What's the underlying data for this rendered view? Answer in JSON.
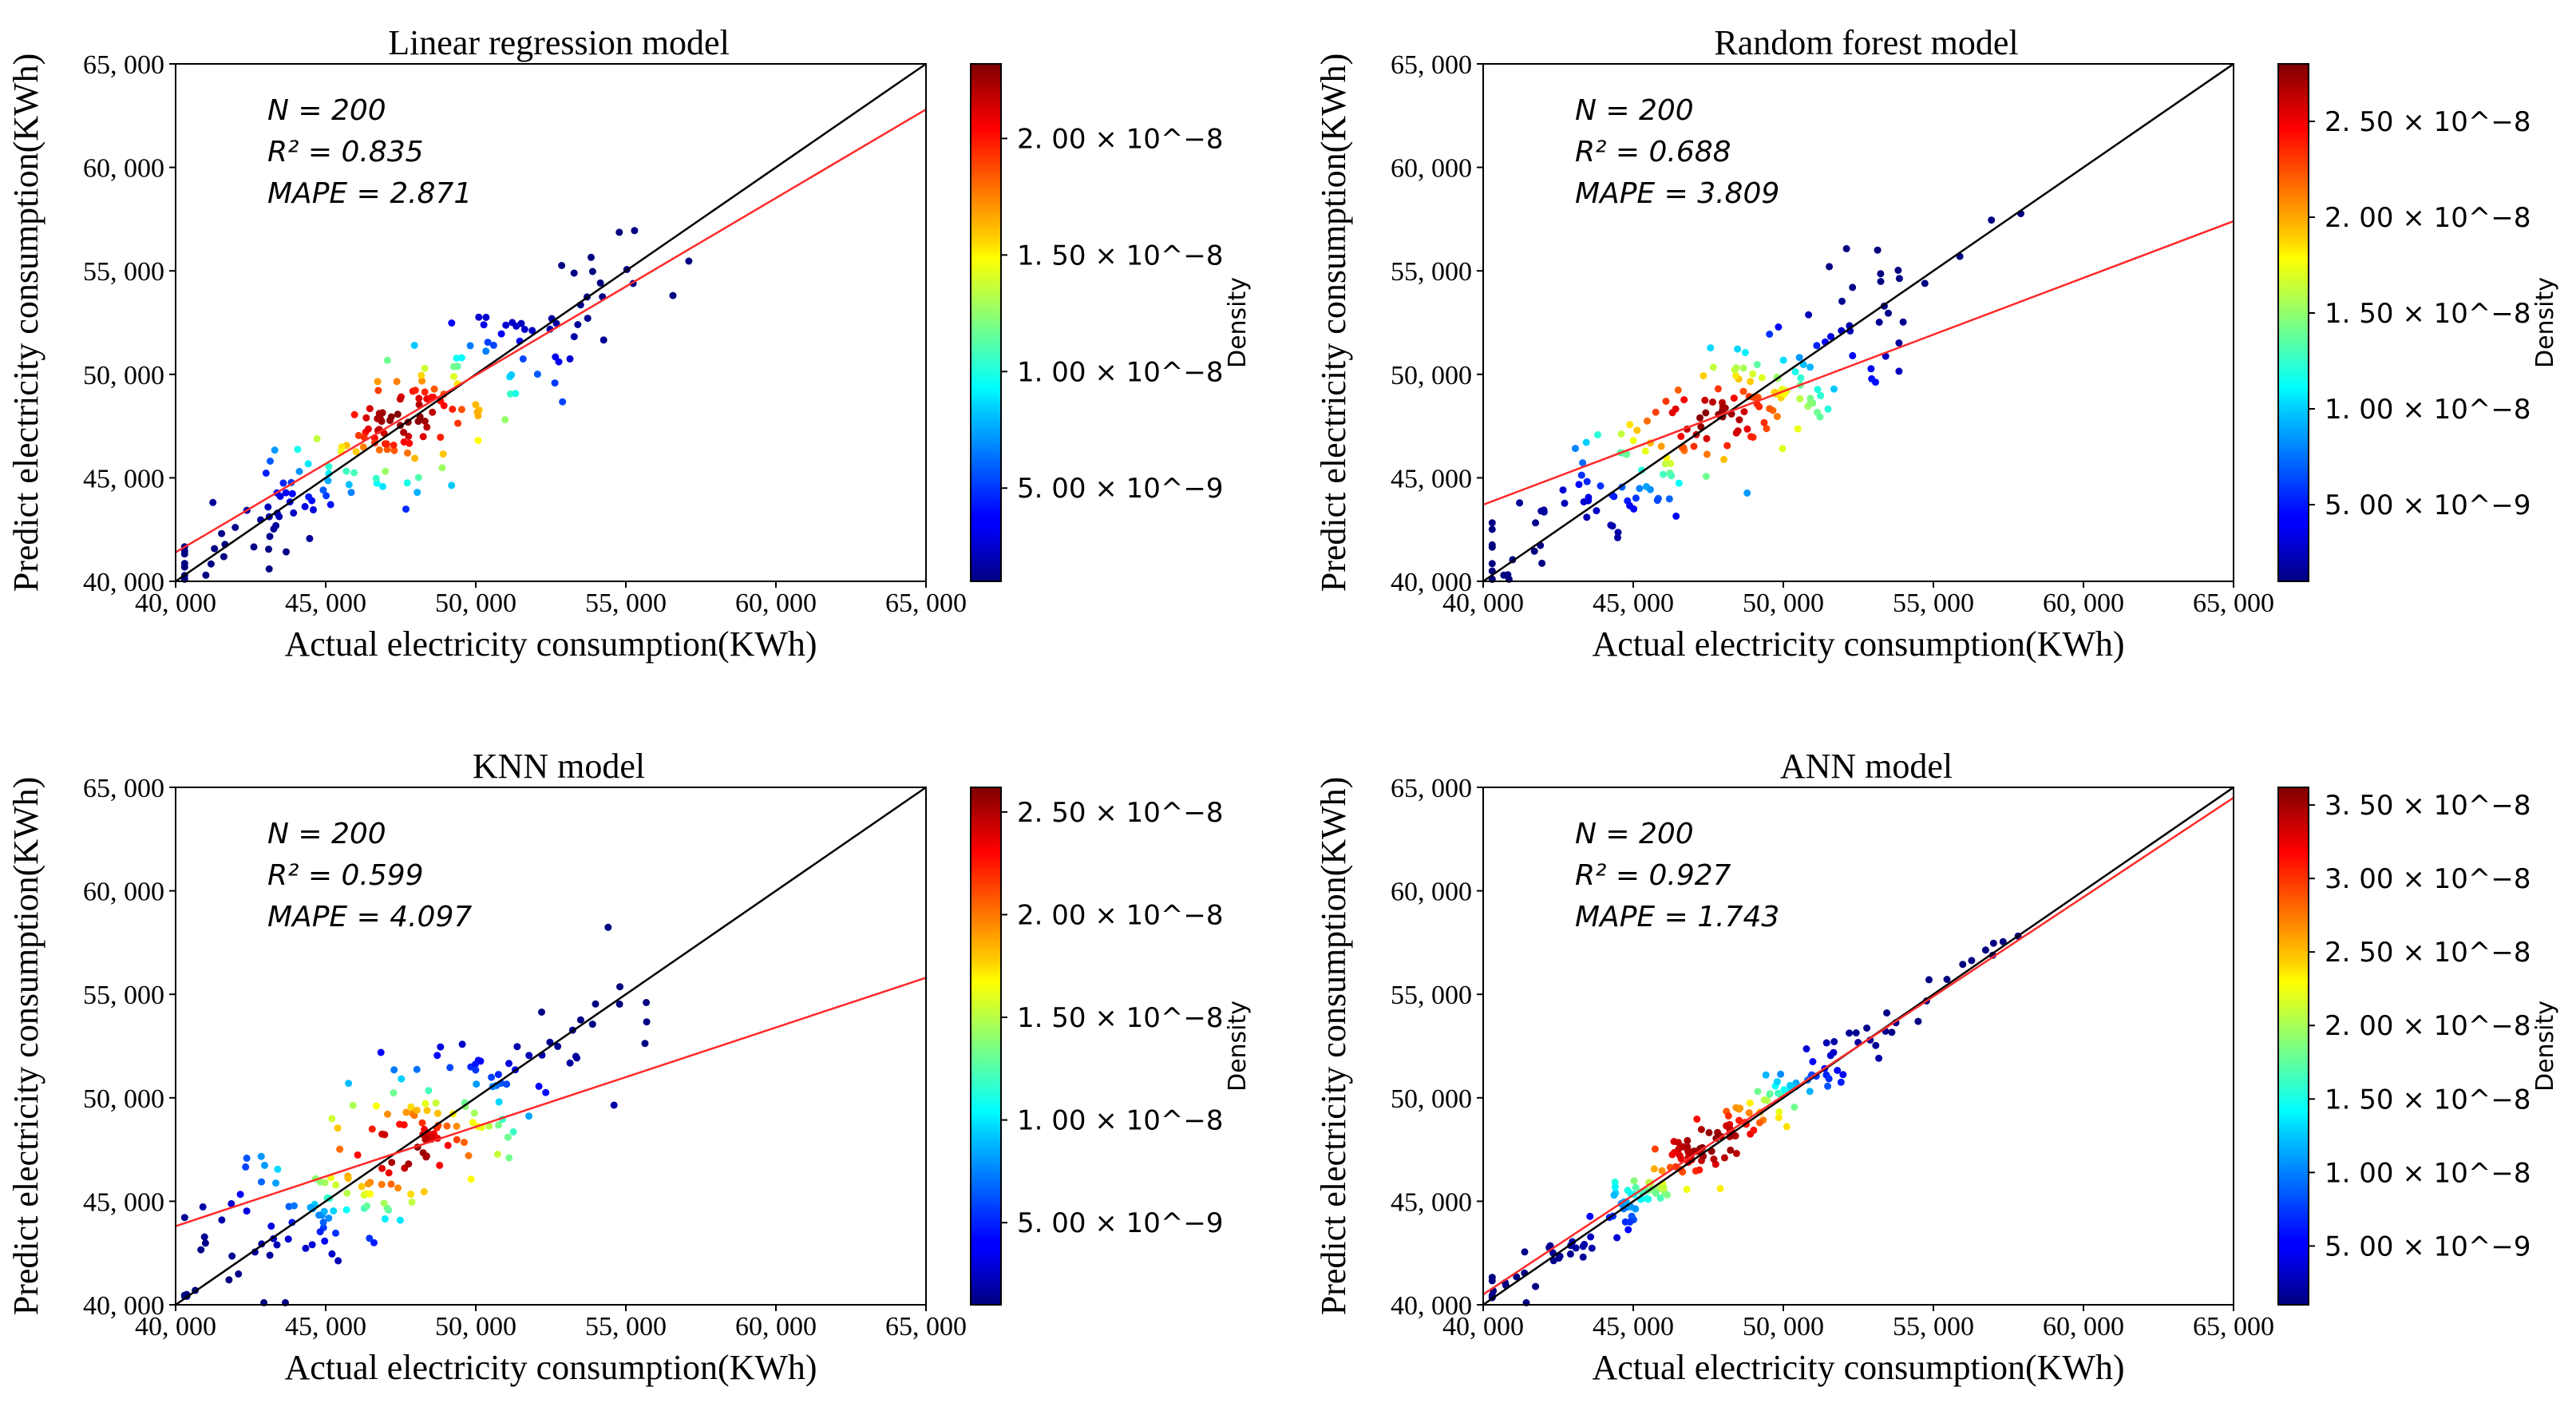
{
  "figure": {
    "accent_fit_color": "#ff2a2a",
    "identity_line_color": "#000000"
  },
  "chart_data": [
    {
      "type": "scatter",
      "title": "Linear regression model",
      "xlabel": "Actual electricity consumption(KWh)",
      "ylabel": "Predict electricity consumption(KWh)",
      "xlim": [
        40000,
        65000
      ],
      "ylim": [
        40000,
        65000
      ],
      "xticks": [
        "40, 000",
        "45, 000",
        "50, 000",
        "55, 000",
        "60, 000",
        "65, 000"
      ],
      "yticks": [
        "40, 000",
        "45, 000",
        "50, 000",
        "55, 000",
        "60, 000",
        "65, 000"
      ],
      "stats": {
        "n_label": "N = 200",
        "r2_label": "R² = 0.835",
        "mape_label": "MAPE = 2.871"
      },
      "fit_line": {
        "intercept": 41400,
        "slope": 0.856
      },
      "identity_line": true,
      "spread": 1500,
      "colorbar": {
        "label": "Density",
        "vmin": 0.1,
        "vmax": 2.32,
        "unit_exp": 8,
        "ticks": [
          {
            "v": 0.5,
            "label": "5. 00  ×  10^−9"
          },
          {
            "v": 1.0,
            "label": "1. 00  ×  10^−8"
          },
          {
            "v": 1.5,
            "label": "1. 50  ×  10^−8"
          },
          {
            "v": 2.0,
            "label": "2. 00  ×  10^−8"
          }
        ]
      }
    },
    {
      "type": "scatter",
      "title": "Random forest model",
      "xlabel": "Actual electricity consumption(KWh)",
      "ylabel": "Predict electricity consumption(KWh)",
      "xlim": [
        40000,
        65000
      ],
      "ylim": [
        40000,
        65000
      ],
      "xticks": [
        "40, 000",
        "45, 000",
        "50, 000",
        "55, 000",
        "60, 000",
        "65, 000"
      ],
      "yticks": [
        "40, 000",
        "45, 000",
        "50, 000",
        "55, 000",
        "60, 000",
        "65, 000"
      ],
      "stats": {
        "n_label": "N = 200",
        "r2_label": "R² = 0.688",
        "mape_label": "MAPE = 3.809"
      },
      "fit_line": {
        "intercept": 43700,
        "slope": 0.548
      },
      "identity_line": true,
      "spread": 1700,
      "colorbar": {
        "label": "Density",
        "vmin": 0.1,
        "vmax": 2.8,
        "unit_exp": 8,
        "ticks": [
          {
            "v": 0.5,
            "label": "5. 00  ×  10^−9"
          },
          {
            "v": 1.0,
            "label": "1. 00  ×  10^−8"
          },
          {
            "v": 1.5,
            "label": "1. 50  ×  10^−8"
          },
          {
            "v": 2.0,
            "label": "2. 00  ×  10^−8"
          },
          {
            "v": 2.5,
            "label": "2. 50  ×  10^−8"
          }
        ]
      }
    },
    {
      "type": "scatter",
      "title": "KNN model",
      "xlabel": "Actual electricity consumption(KWh)",
      "ylabel": "Predict electricity consumption(KWh)",
      "xlim": [
        40000,
        65000
      ],
      "ylim": [
        40000,
        65000
      ],
      "xticks": [
        "40, 000",
        "45, 000",
        "50, 000",
        "55, 000",
        "60, 000",
        "65, 000"
      ],
      "yticks": [
        "40, 000",
        "45, 000",
        "50, 000",
        "55, 000",
        "60, 000",
        "65, 000"
      ],
      "stats": {
        "n_label": "N = 200",
        "r2_label": "R² = 0.599",
        "mape_label": "MAPE = 4.097"
      },
      "fit_line": {
        "intercept": 43800,
        "slope": 0.48
      },
      "identity_line": true,
      "spread": 2000,
      "colorbar": {
        "label": "Density",
        "vmin": 0.1,
        "vmax": 2.62,
        "unit_exp": 8,
        "ticks": [
          {
            "v": 0.5,
            "label": "5. 00  ×  10^−9"
          },
          {
            "v": 1.0,
            "label": "1. 00  ×  10^−8"
          },
          {
            "v": 1.5,
            "label": "1. 50  ×  10^−8"
          },
          {
            "v": 2.0,
            "label": "2. 00  ×  10^−8"
          },
          {
            "v": 2.5,
            "label": "2. 50  ×  10^−8"
          }
        ]
      }
    },
    {
      "type": "scatter",
      "title": "ANN model",
      "xlabel": "Actual electricity consumption(KWh)",
      "ylabel": "Predict electricity consumption(KWh)",
      "xlim": [
        40000,
        65000
      ],
      "ylim": [
        40000,
        65000
      ],
      "xticks": [
        "40, 000",
        "45, 000",
        "50, 000",
        "55, 000",
        "60, 000",
        "65, 000"
      ],
      "yticks": [
        "40, 000",
        "45, 000",
        "50, 000",
        "55, 000",
        "60, 000",
        "65, 000"
      ],
      "stats": {
        "n_label": "N = 200",
        "r2_label": "R² = 0.927",
        "mape_label": "MAPE = 1.743"
      },
      "fit_line": {
        "intercept": 40500,
        "slope": 0.96
      },
      "identity_line": true,
      "spread": 700,
      "colorbar": {
        "label": "Density",
        "vmin": 0.1,
        "vmax": 3.62,
        "unit_exp": 8,
        "ticks": [
          {
            "v": 0.5,
            "label": "5. 00  ×  10^−9"
          },
          {
            "v": 1.0,
            "label": "1. 00  ×  10^−8"
          },
          {
            "v": 1.5,
            "label": "1. 50  ×  10^−8"
          },
          {
            "v": 2.0,
            "label": "2. 00  ×  10^−8"
          },
          {
            "v": 2.5,
            "label": "2. 50  ×  10^−8"
          },
          {
            "v": 3.0,
            "label": "3. 00  ×  10^−8"
          },
          {
            "v": 3.5,
            "label": "3. 50  ×  10^−8"
          }
        ]
      }
    }
  ]
}
